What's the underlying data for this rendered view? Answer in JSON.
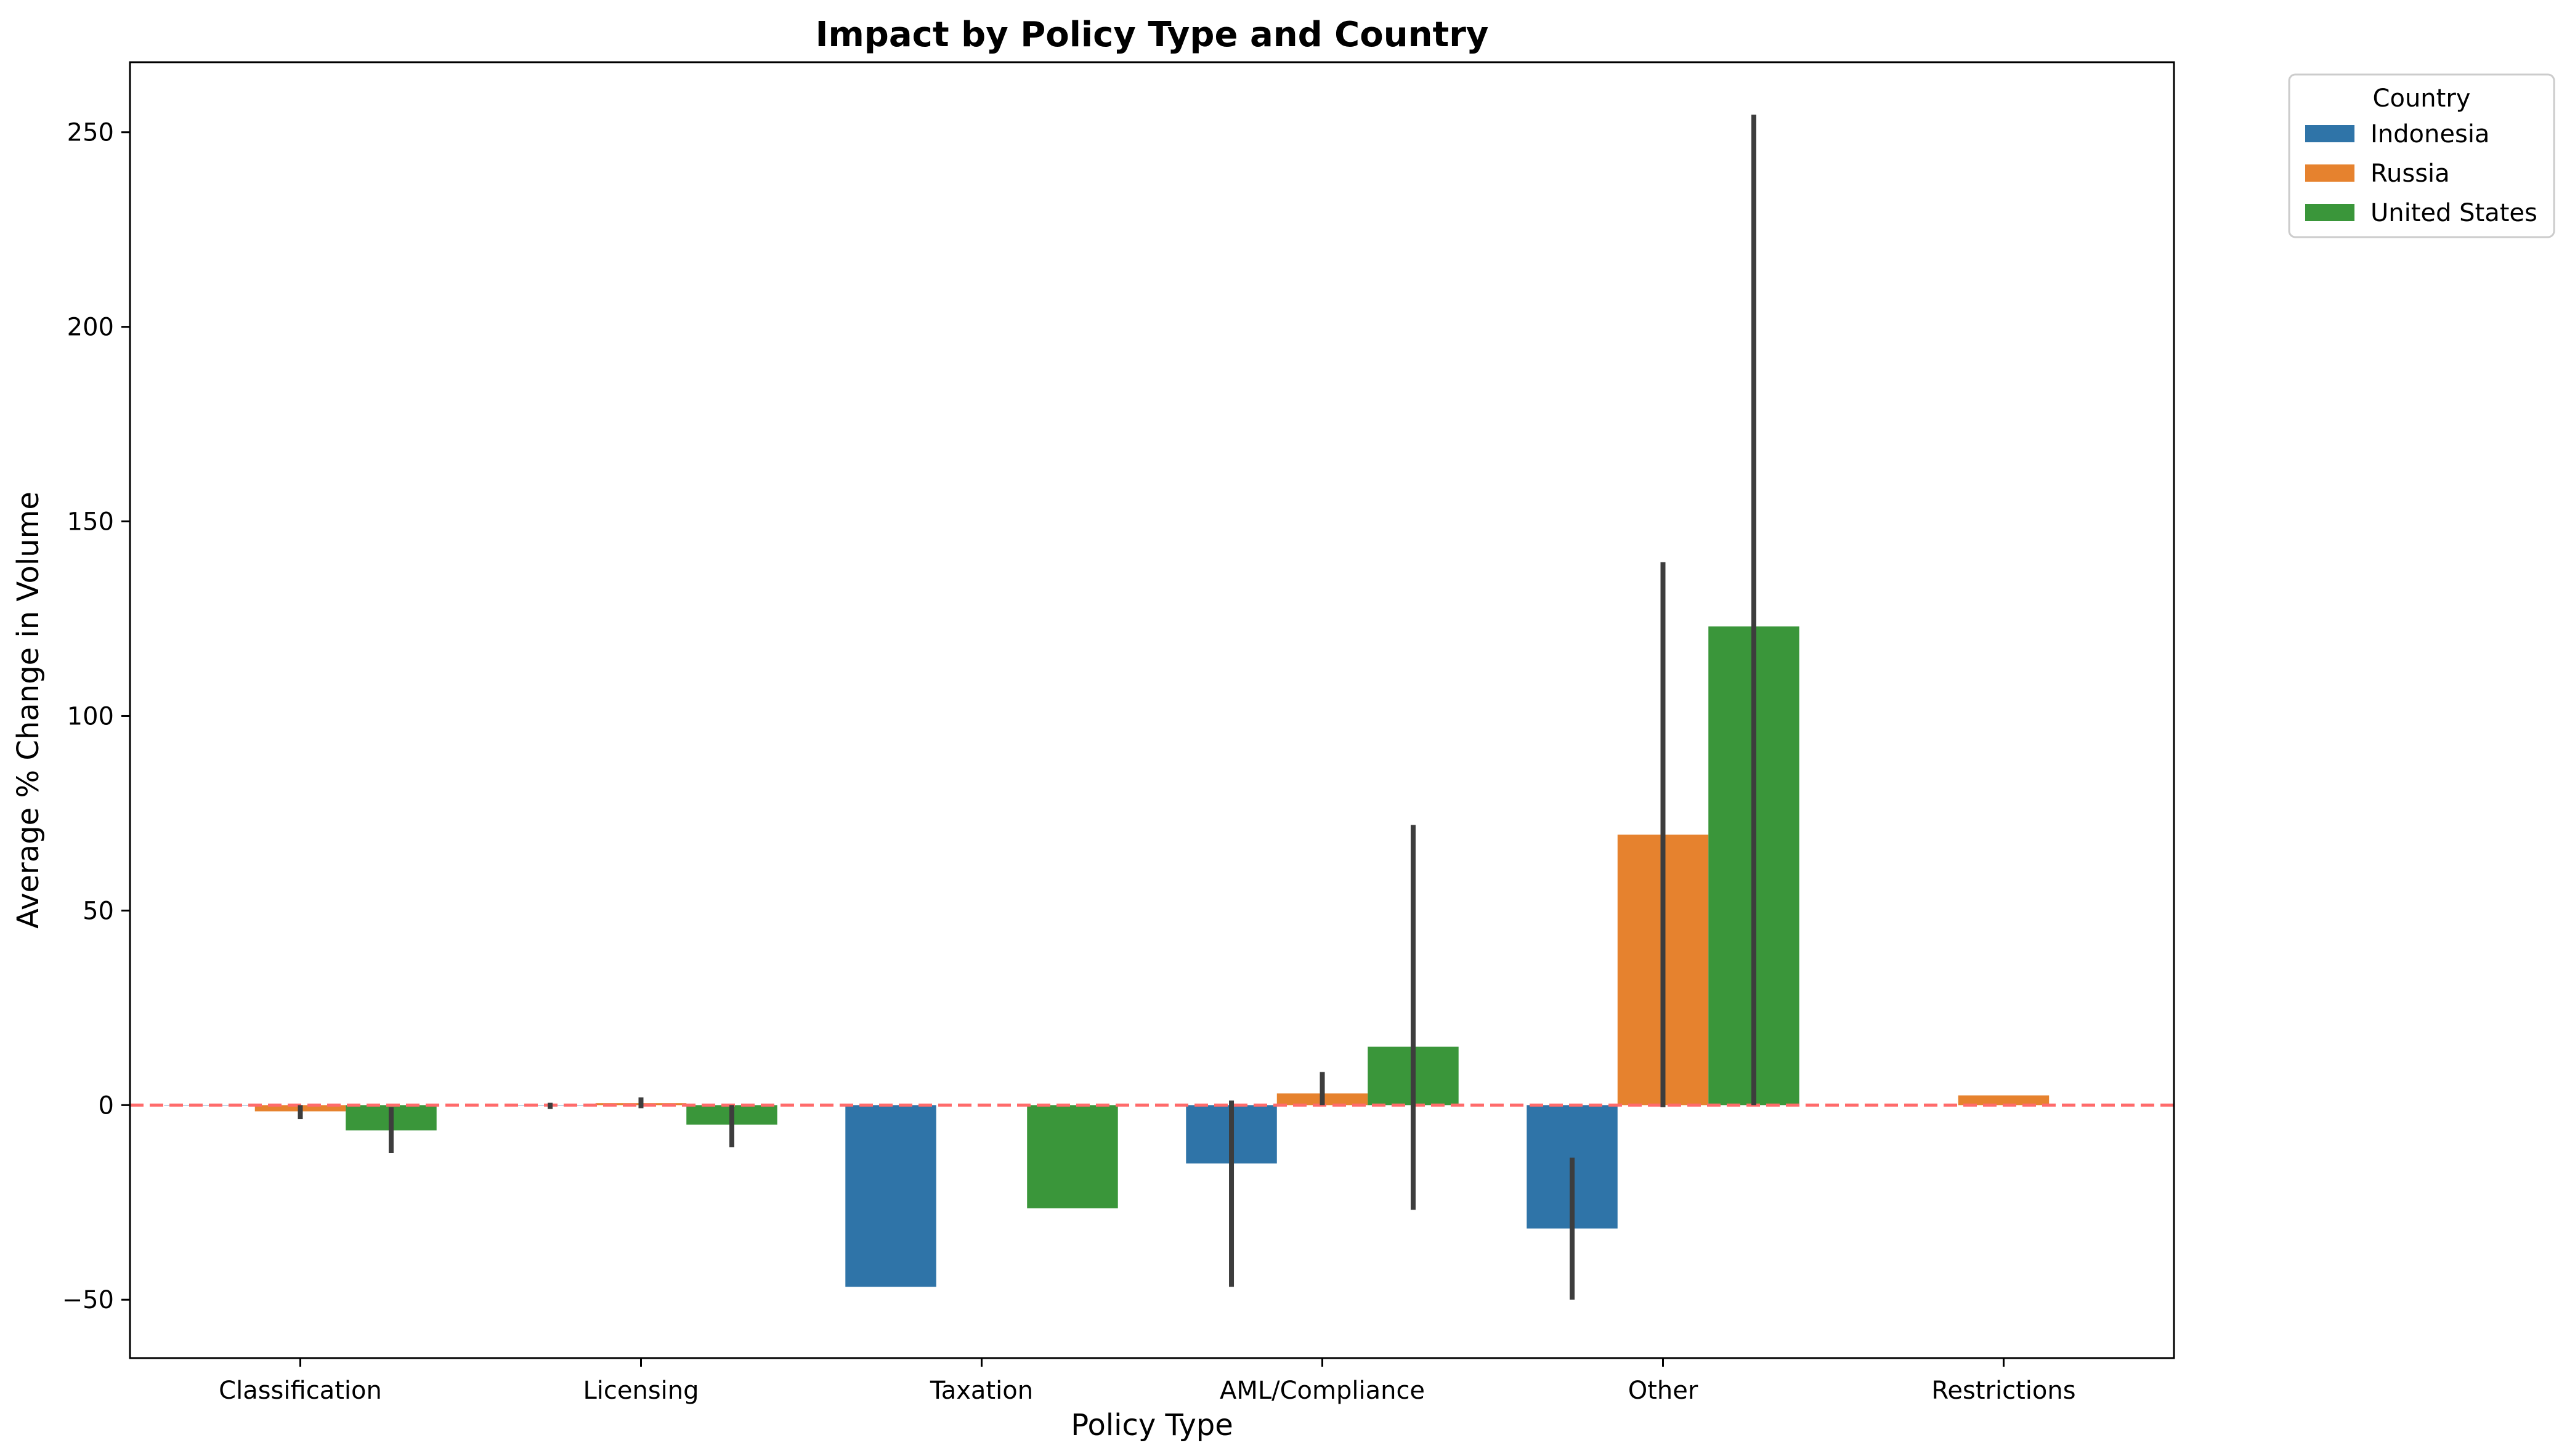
{
  "chart_data": {
    "type": "bar",
    "title": "Impact by Policy Type and Country",
    "xlabel": "Policy Type",
    "ylabel": "Average % Change in Volume",
    "categories": [
      "Classification",
      "Licensing",
      "Taxation",
      "AML/Compliance",
      "Other",
      "Restrictions"
    ],
    "ylim": [
      -65,
      268
    ],
    "yticks": [
      -50,
      0,
      50,
      100,
      150,
      200,
      250
    ],
    "ytick_labels": [
      "−50",
      "0",
      "50",
      "100",
      "150",
      "200",
      "250"
    ],
    "reference_line": {
      "y": 0,
      "style": "dashed",
      "color": "#ff6b6b"
    },
    "grid": false,
    "legend": {
      "title": "Country",
      "placement": "outside-top-right"
    },
    "series": [
      {
        "name": "Indonesia",
        "color": "#2f74a8",
        "values": [
          0,
          0,
          -46.7,
          -15.0,
          -31.7,
          null
        ],
        "error": [
          null,
          [
            -1.0,
            0.6
          ],
          null,
          [
            -46.7,
            1.2
          ],
          [
            -50.0,
            -13.5
          ],
          null
        ]
      },
      {
        "name": "Russia",
        "color": "#e6822e",
        "values": [
          -1.6,
          0.5,
          null,
          3.0,
          69.5,
          2.5
        ],
        "error": [
          [
            -3.6,
            0.0
          ],
          [
            -0.8,
            2.0
          ],
          null,
          [
            0.0,
            8.5
          ],
          [
            -0.5,
            139.5
          ],
          null
        ]
      },
      {
        "name": "United States",
        "color": "#3a963a",
        "values": [
          -6.5,
          -5.0,
          -26.5,
          15.0,
          123.0,
          null
        ],
        "error": [
          [
            -12.3,
            -0.5
          ],
          [
            -10.8,
            0.0
          ],
          null,
          [
            -26.9,
            72.0
          ],
          [
            0.0,
            254.5
          ],
          null
        ]
      }
    ]
  }
}
